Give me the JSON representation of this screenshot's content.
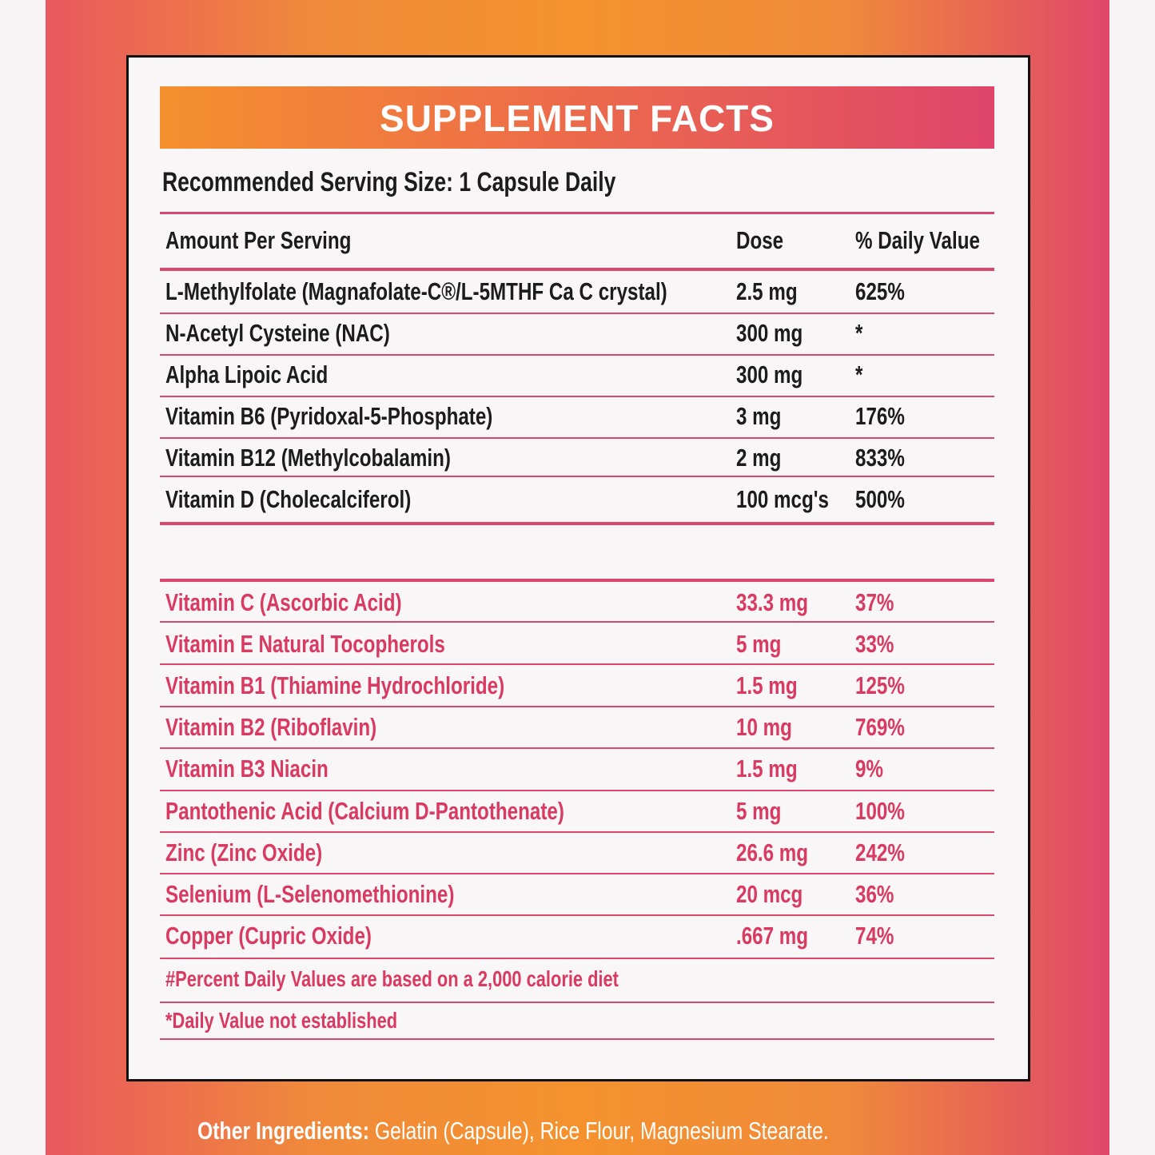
{
  "header": {
    "title": "SUPPLEMENT FACTS",
    "serving_size": "Recommended Serving Size: 1 Capsule Daily"
  },
  "table": {
    "columns": [
      "Amount Per Serving",
      "Dose",
      "% Daily Value"
    ],
    "rows": [
      [
        "L-Methylfolate (Magnafolate-C®/L-5MTHF Ca C crystal)",
        "2.5 mg",
        "625%"
      ],
      [
        "N-Acetyl Cysteine (NAC)",
        "300 mg",
        "*"
      ],
      [
        "Alpha Lipoic Acid",
        "300 mg",
        "*"
      ],
      [
        "Vitamin B6 (Pyridoxal-5-Phosphate)",
        "3 mg",
        "176%"
      ],
      [
        "Vitamin B12 (Methylcobalamin)",
        "2 mg",
        "833%"
      ],
      [
        "Vitamin D (Cholecalciferol)",
        "100 mcg's",
        "500%"
      ]
    ],
    "rows2": [
      [
        "Vitamin C (Ascorbic Acid)",
        "33.3 mg",
        "37%"
      ],
      [
        "Vitamin E Natural Tocopherols",
        "5 mg",
        "33%"
      ],
      [
        "Vitamin B1 (Thiamine Hydrochloride)",
        "1.5 mg",
        "125%"
      ],
      [
        "Vitamin B2 (Riboflavin)",
        "10 mg",
        "769%"
      ],
      [
        "Vitamin B3 Niacin",
        "1.5 mg",
        "9%"
      ],
      [
        "Pantothenic Acid (Calcium D-Pantothenate)",
        "5 mg",
        "100%"
      ],
      [
        "Zinc (Zinc Oxide)",
        "26.6 mg",
        "242%"
      ],
      [
        "Selenium (L-Selenomethionine)",
        "20 mcg",
        "36%"
      ],
      [
        "Copper (Cupric Oxide)",
        ".667 mg",
        "74%"
      ]
    ],
    "footnotes": [
      "#Percent Daily Values are based on a 2,000 calorie diet",
      "*Daily Value not established"
    ]
  },
  "other_ingredients": {
    "label": "Other Ingredients:",
    "text": "Gelatin (Capsule), Rice Flour, Magnesium Stearate."
  }
}
